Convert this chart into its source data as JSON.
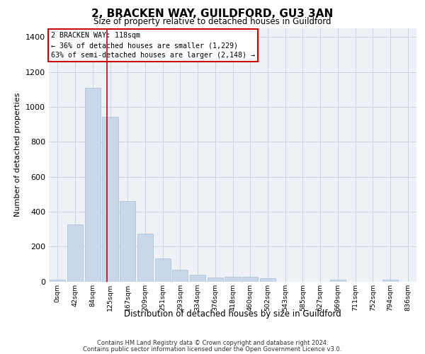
{
  "title": "2, BRACKEN WAY, GUILDFORD, GU3 3AN",
  "subtitle": "Size of property relative to detached houses in Guildford",
  "xlabel": "Distribution of detached houses by size in Guildford",
  "ylabel": "Number of detached properties",
  "footnote1": "Contains HM Land Registry data © Crown copyright and database right 2024.",
  "footnote2": "Contains public sector information licensed under the Open Government Licence v3.0.",
  "annotation_line1": "2 BRACKEN WAY: 118sqm",
  "annotation_line2": "← 36% of detached houses are smaller (1,229)",
  "annotation_line3": "63% of semi-detached houses are larger (2,148) →",
  "bar_color": "#c8d8ea",
  "bar_edge_color": "#a8bfd4",
  "grid_color": "#c8d4de",
  "red_line_color": "#cc0000",
  "bg_color": "#eef2f6",
  "categories": [
    "0sqm",
    "42sqm",
    "84sqm",
    "125sqm",
    "167sqm",
    "209sqm",
    "251sqm",
    "293sqm",
    "334sqm",
    "376sqm",
    "418sqm",
    "460sqm",
    "502sqm",
    "543sqm",
    "585sqm",
    "627sqm",
    "669sqm",
    "711sqm",
    "752sqm",
    "794sqm",
    "836sqm"
  ],
  "values": [
    10,
    325,
    1110,
    945,
    460,
    272,
    130,
    68,
    38,
    22,
    25,
    25,
    18,
    0,
    0,
    0,
    10,
    0,
    0,
    12,
    0
  ],
  "red_line_x": 2.82,
  "ylim": [
    0,
    1450
  ],
  "yticks": [
    0,
    200,
    400,
    600,
    800,
    1000,
    1200,
    1400
  ]
}
